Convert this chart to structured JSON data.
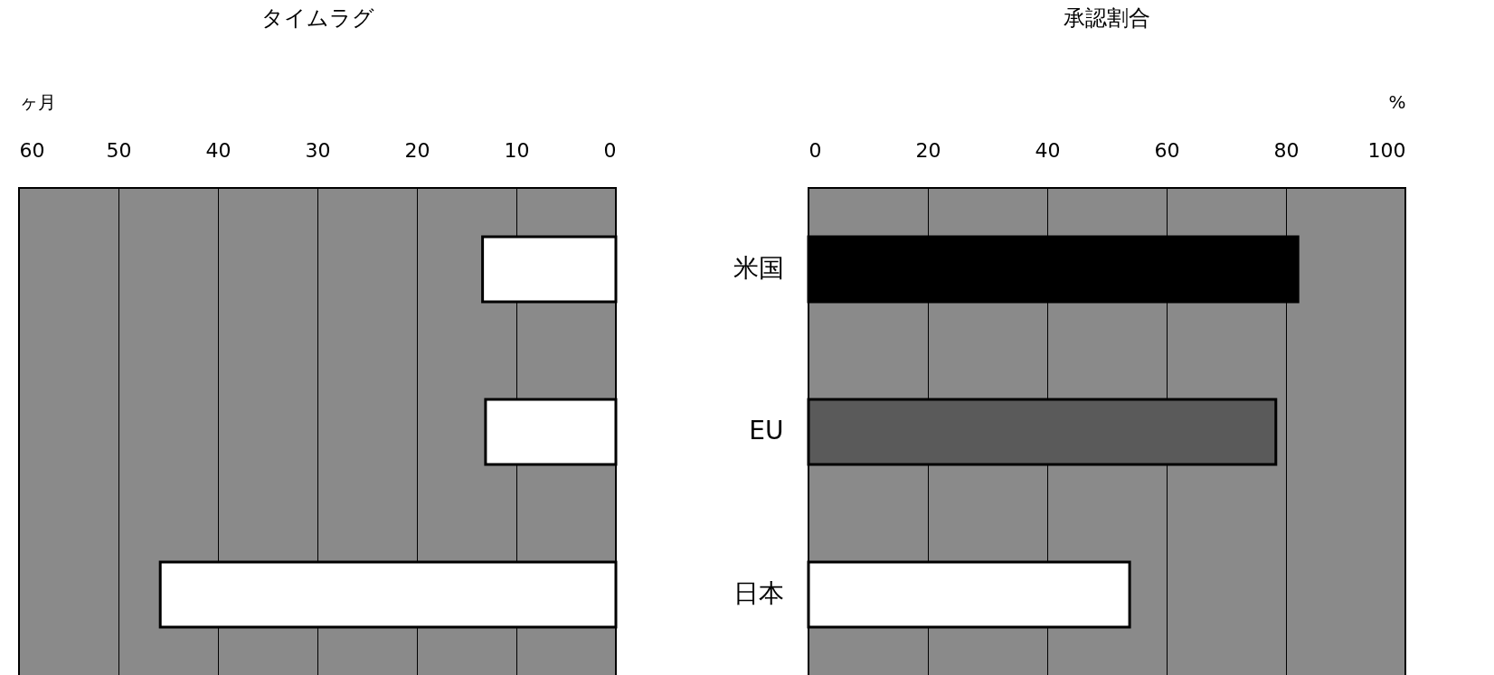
{
  "chart_data": [
    {
      "type": "bar",
      "title": "タイムラグ",
      "xlabel": "ヶ月",
      "orientation": "horizontal",
      "categories": [
        null,
        null,
        null
      ],
      "values": [
        13.4,
        13.1,
        45.8
      ],
      "colors": [
        "#ffffff",
        "#ffffff",
        "#ffffff"
      ],
      "xlim": [
        60,
        0
      ],
      "xticks": [
        60,
        50,
        40,
        30,
        20,
        10,
        0
      ],
      "grid": "x",
      "tick_labels": "x"
    },
    {
      "type": "bar",
      "title": "承認割合",
      "xlabel": "%",
      "orientation": "horizontal",
      "categories": [
        "米国",
        "EU",
        "日本"
      ],
      "values": [
        82,
        78.3,
        53.8
      ],
      "colors": [
        "#000000",
        "#5a5a5a",
        "#ffffff"
      ],
      "xlim": [
        0,
        100
      ],
      "xticks": [
        0,
        20,
        40,
        60,
        80,
        100
      ],
      "grid": "x"
    }
  ]
}
